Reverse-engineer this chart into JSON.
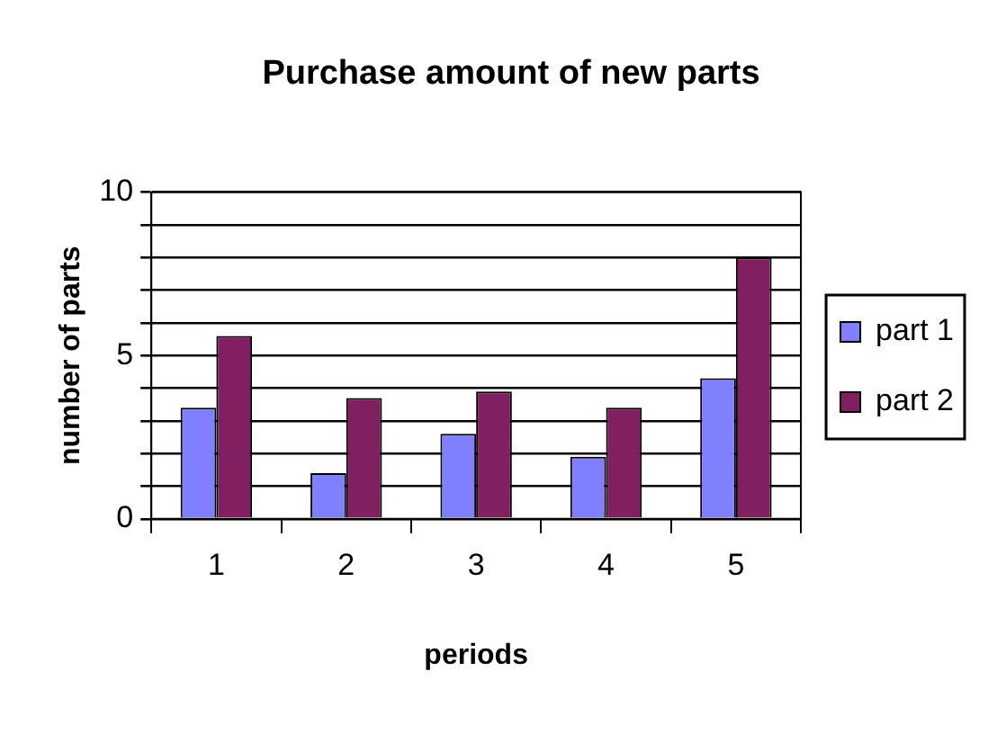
{
  "chart_data": {
    "type": "bar",
    "title": "Purchase amount of new parts",
    "xlabel": "periods",
    "ylabel": "number of parts",
    "categories": [
      "1",
      "2",
      "3",
      "4",
      "5"
    ],
    "series": [
      {
        "name": "part 1",
        "color": "#8080ff",
        "values": [
          3.4,
          1.4,
          2.6,
          1.9,
          4.3
        ]
      },
      {
        "name": "part 2",
        "color": "#802060",
        "values": [
          5.6,
          3.7,
          3.9,
          3.4,
          8.0
        ]
      }
    ],
    "ylim": [
      0,
      10
    ],
    "yticks": [
      0,
      {
        "value": 1,
        "label": null
      },
      {
        "value": 2,
        "label": null
      },
      {
        "value": 3,
        "label": null
      },
      {
        "value": 4,
        "label": null
      },
      5,
      {
        "value": 6,
        "label": null
      },
      {
        "value": 7,
        "label": null
      },
      {
        "value": 8,
        "label": null
      },
      {
        "value": 9,
        "label": null
      },
      10
    ],
    "grid": "y",
    "legend": "right"
  }
}
